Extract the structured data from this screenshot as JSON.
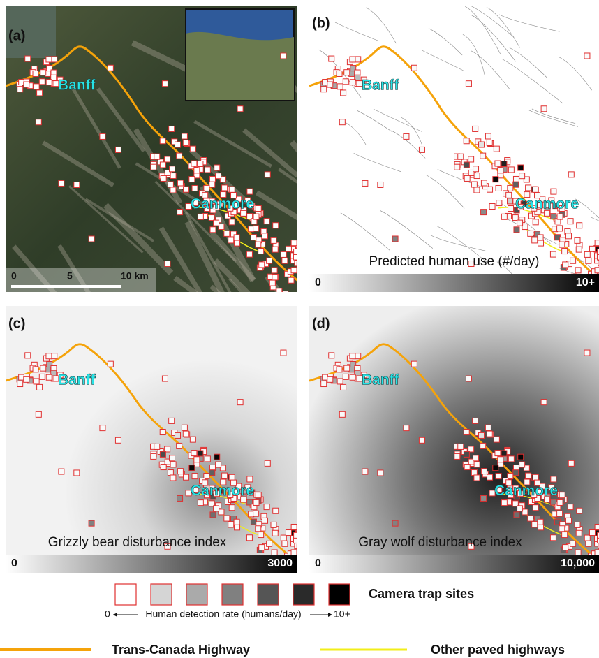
{
  "panels": [
    {
      "label": "(a)",
      "towns": [
        "Banff",
        "Canmore"
      ],
      "scalebar": {
        "ticks": [
          0,
          5,
          {
            "value": 10,
            "label": "10 km"
          }
        ]
      }
    },
    {
      "label": "(b)",
      "towns": [
        "Banff",
        "Canmore"
      ],
      "colorbar": {
        "title": "Predicted human use (#/day)",
        "min": 0,
        "max": {
          "value": 10,
          "label": "10+"
        }
      }
    },
    {
      "label": "(c)",
      "towns": [
        "Banff",
        "Canmore"
      ],
      "colorbar": {
        "title": "Grizzly bear disturbance index",
        "min": 0,
        "max": 3000
      }
    },
    {
      "label": "(d)",
      "towns": [
        "Banff",
        "Canmore"
      ],
      "colorbar": {
        "title": "Gray wolf disturbance index",
        "min": 0,
        "max": {
          "value": 10000,
          "label": "10,000"
        }
      }
    }
  ],
  "legend": {
    "camera_title": "Camera trap sites",
    "min": 0,
    "axis_label": "Human detection rate (humans/day)",
    "max": {
      "value": 10,
      "label": "10+"
    },
    "trans_canada": "Trans-Canada Highway",
    "other_highways": "Other paved highways"
  }
}
